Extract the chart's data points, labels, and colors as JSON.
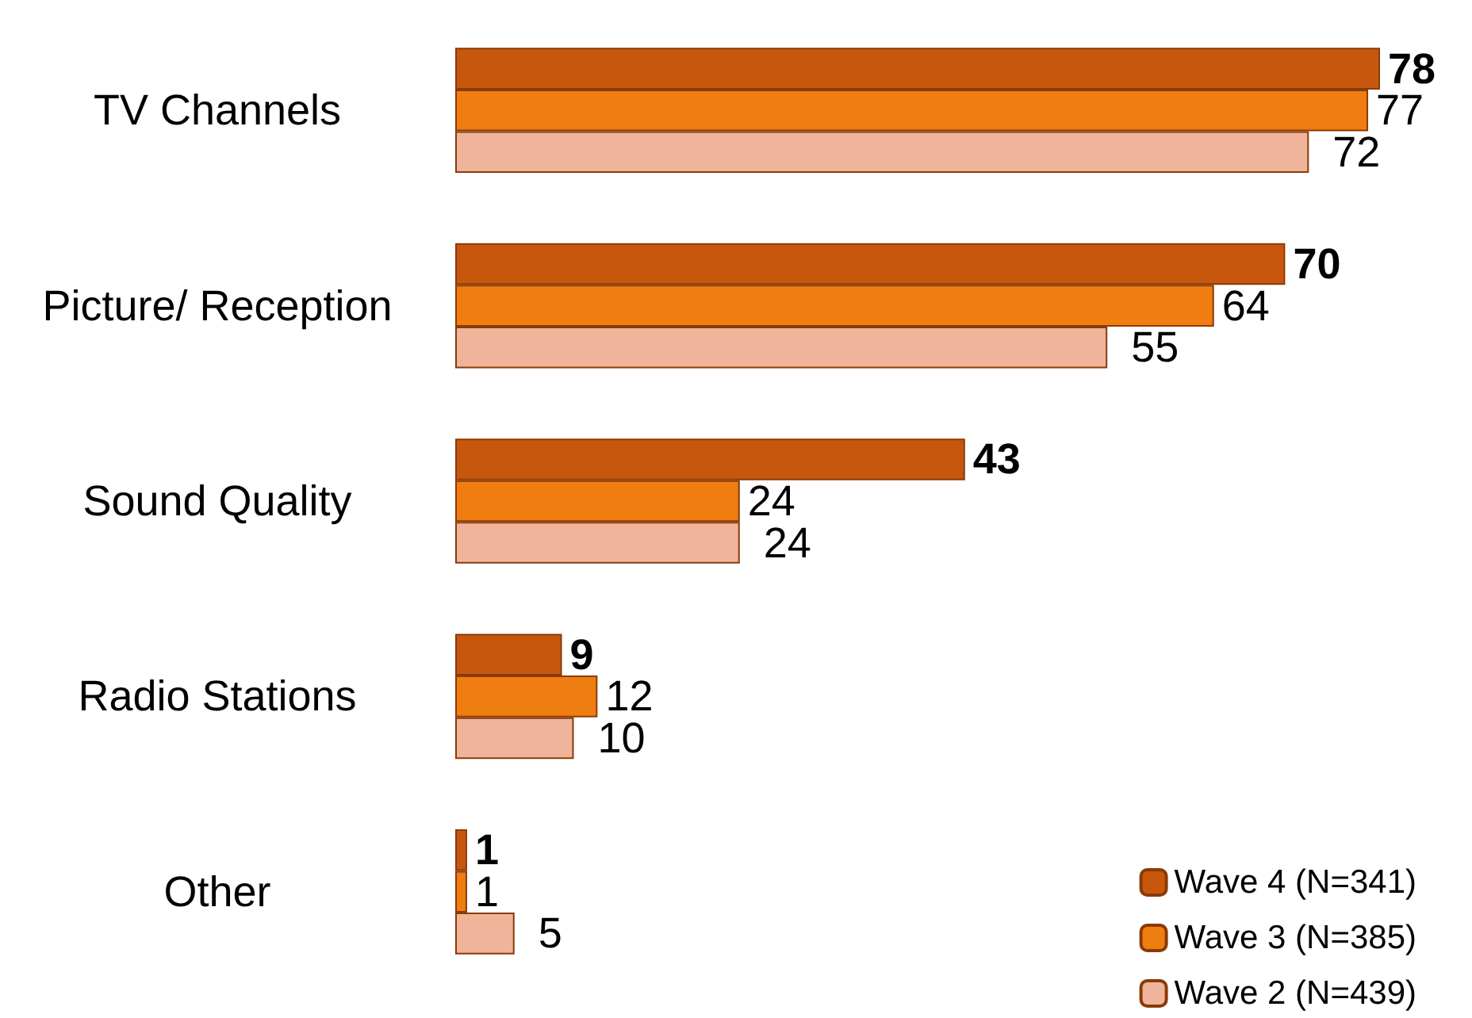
{
  "chart_data": {
    "type": "bar",
    "orientation": "horizontal",
    "categories": [
      "TV Channels",
      "Picture/ Reception",
      "Sound Quality",
      "Radio Stations",
      "Other"
    ],
    "series": [
      {
        "name": "Wave 4 (N=341)",
        "color": "#c8570e",
        "values": [
          78,
          70,
          43,
          9,
          1
        ]
      },
      {
        "name": "Wave 3 (N=385)",
        "color": "#f07d10",
        "values": [
          77,
          64,
          24,
          12,
          1
        ]
      },
      {
        "name": "Wave 2 (N=439)",
        "color": "#f0b49a",
        "values": [
          72,
          55,
          24,
          10,
          5
        ]
      }
    ],
    "data_labels": true,
    "legend": "bottom right",
    "grid": false
  }
}
